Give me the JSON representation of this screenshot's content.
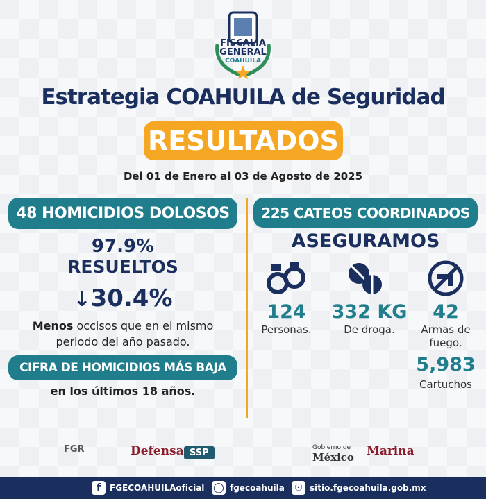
{
  "logo": {
    "line1": "FISCALÍA",
    "line2": "GENERAL",
    "line3": "COAHUILA"
  },
  "header": {
    "title": "Estrategia COAHUILA de Seguridad",
    "badge": "RESULTADOS",
    "period": "Del 01 de Enero al 03 de Agosto de 2025"
  },
  "left": {
    "heading": "48 HOMICIDIOS DOLOSOS",
    "rate": "97.9%",
    "rate_label": "RESUELTOS",
    "change": "30.4%",
    "note_bold": "Menos",
    "note": "occisos que en el mismo periodo del año pasado.",
    "banner": "CIFRA DE HOMICIDIOS MÁS BAJA",
    "banner_note": "en los últimos 18 años."
  },
  "right": {
    "heading": "225 CATEOS COORDINADOS",
    "subheading": "ASEGURAMOS",
    "items": [
      {
        "value": "124",
        "label": "Personas."
      },
      {
        "value": "332 KG",
        "label": "De droga."
      },
      {
        "value": "42",
        "label": "Armas de fuego."
      },
      {
        "value": "5,983",
        "label": "Cartuchos"
      }
    ]
  },
  "partners": [
    "FGR",
    "Defensa",
    "SSP",
    "Gobierno de",
    "México",
    "Marina"
  ],
  "footer": {
    "facebook": "FGECOAHUILAoficial",
    "instagram": "fgecoahuila",
    "website": "sitio.fgecoahuila.gob.mx"
  }
}
